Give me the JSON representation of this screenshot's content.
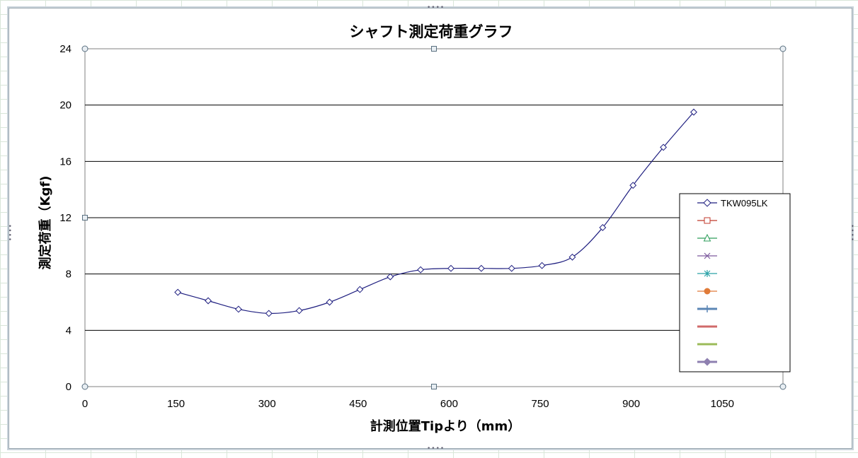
{
  "chart_data": {
    "type": "line",
    "title": "シャフト測定荷重グラフ",
    "xlabel": "計測位置Tipより（mm）",
    "ylabel": "測定荷重（Kgf)",
    "xlim": [
      0,
      1150
    ],
    "ylim": [
      0,
      24
    ],
    "x_ticks": [
      0,
      150,
      300,
      450,
      600,
      750,
      900,
      1050
    ],
    "y_ticks": [
      0,
      4,
      8,
      12,
      16,
      20,
      24
    ],
    "grid": "horizontal",
    "legend_position": "right",
    "series": [
      {
        "name": "TKW095LK",
        "color": "#1f1f80",
        "marker": "diamond",
        "smooth": true,
        "x": [
          153,
          203,
          253,
          303,
          353,
          403,
          453,
          503,
          553,
          603,
          653,
          703,
          753,
          803,
          853,
          903,
          953,
          1003
        ],
        "y": [
          6.7,
          6.1,
          5.5,
          5.2,
          5.4,
          6.0,
          6.9,
          7.8,
          8.3,
          8.4,
          8.4,
          8.4,
          8.6,
          9.2,
          11.3,
          14.3,
          17.0,
          19.5
        ]
      }
    ],
    "legend_entries": [
      {
        "label": "TKW095LK",
        "color": "#1f1f80",
        "marker": "diamond-open"
      },
      {
        "label": "",
        "color": "#c0392b",
        "marker": "square-open"
      },
      {
        "label": "",
        "color": "#2e9e5b",
        "marker": "triangle-open"
      },
      {
        "label": "",
        "color": "#7d5a9e",
        "marker": "x"
      },
      {
        "label": "",
        "color": "#2aa2a8",
        "marker": "star"
      },
      {
        "label": "",
        "color": "#e07b39",
        "marker": "circle"
      },
      {
        "label": "",
        "color": "#5b86b5",
        "marker": "plus-thick"
      },
      {
        "label": "",
        "color": "#d06a6a",
        "marker": "none-thick"
      },
      {
        "label": "",
        "color": "#9bbb59",
        "marker": "none-thick"
      },
      {
        "label": "",
        "color": "#8e80b0",
        "marker": "diamond-filled-thick"
      }
    ]
  }
}
